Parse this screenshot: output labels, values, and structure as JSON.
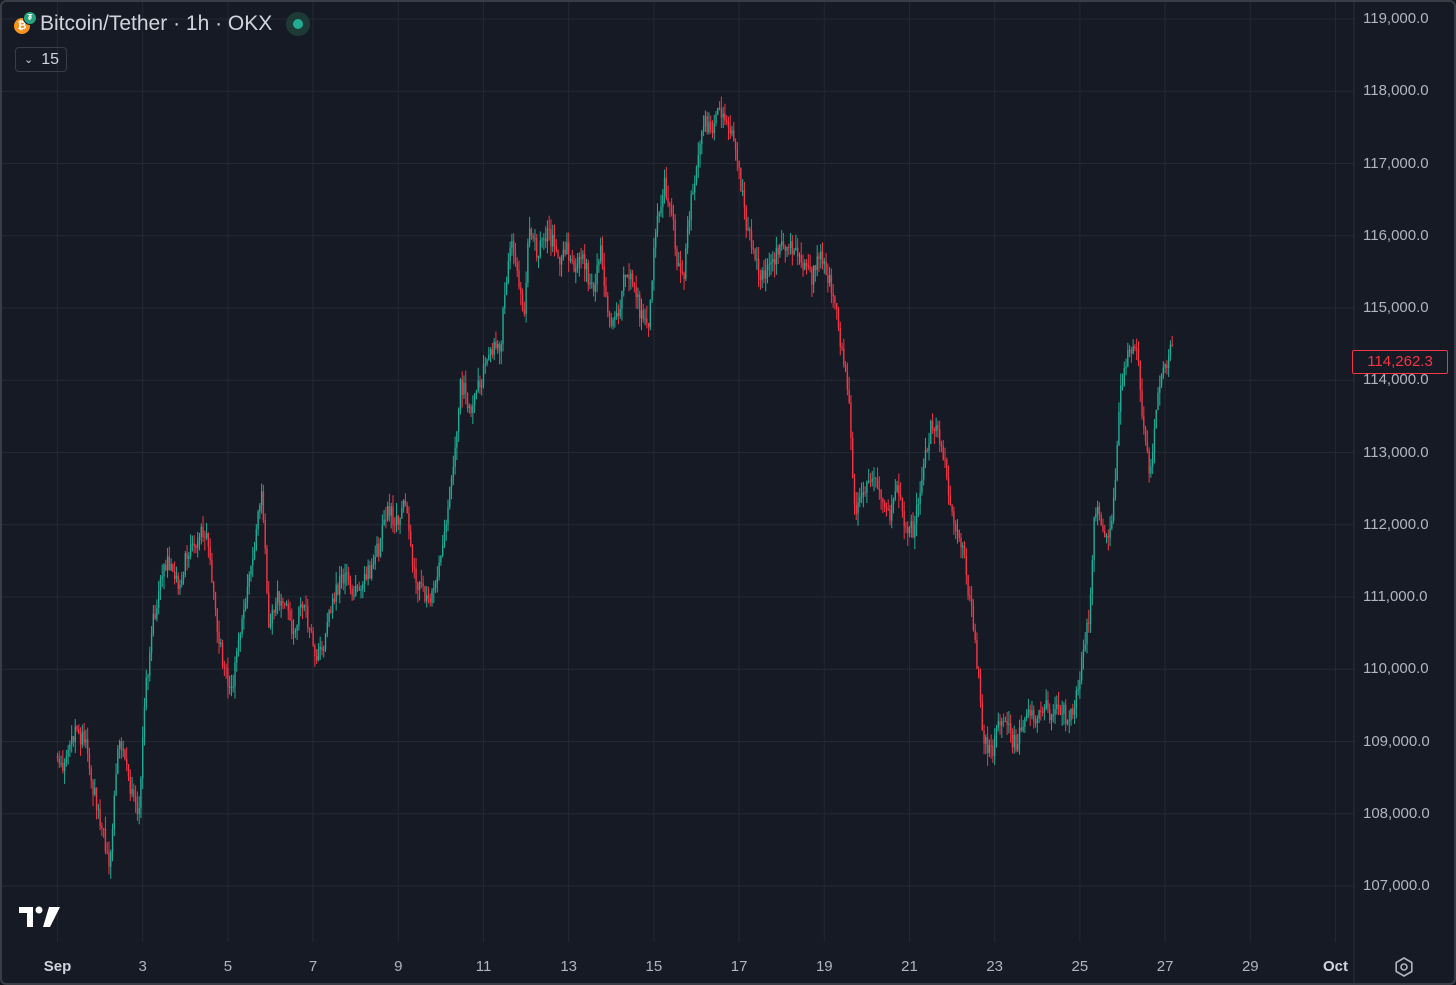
{
  "header": {
    "title": "Bitcoin/Tether · 1h · OKX",
    "status_color": "#22ab94",
    "base_icon": "bitcoin-icon",
    "quote_icon": "tether-icon"
  },
  "indicator_toggle": {
    "label": "15"
  },
  "last_price": {
    "label": "114,262.3",
    "color": "#f23645"
  },
  "colors": {
    "up": "#22ab94",
    "down": "#f23645",
    "background": "#161a25",
    "grid": "#242833"
  },
  "chart_data": {
    "type": "candlestick",
    "title": "Bitcoin/Tether · 1h · OKX",
    "ylim": [
      106000,
      119200
    ],
    "y_ticks": [
      {
        "value": 119000,
        "label": "119,000.0"
      },
      {
        "value": 118000,
        "label": "118,000.0"
      },
      {
        "value": 117000,
        "label": "117,000.0"
      },
      {
        "value": 116000,
        "label": "116,000.0"
      },
      {
        "value": 115000,
        "label": "115,000.0"
      },
      {
        "value": 114000,
        "label": "114,000.0"
      },
      {
        "value": 113000,
        "label": "113,000.0"
      },
      {
        "value": 112000,
        "label": "112,000.0"
      },
      {
        "value": 111000,
        "label": "111,000.0"
      },
      {
        "value": 110000,
        "label": "110,000.0"
      },
      {
        "value": 109000,
        "label": "109,000.0"
      },
      {
        "value": 108000,
        "label": "108,000.0"
      },
      {
        "value": 107000,
        "label": "107,000.0"
      }
    ],
    "x_ticks": [
      {
        "label": "Sep",
        "day": 1,
        "bold": true
      },
      {
        "label": "3",
        "day": 3
      },
      {
        "label": "5",
        "day": 5
      },
      {
        "label": "7",
        "day": 7
      },
      {
        "label": "9",
        "day": 9
      },
      {
        "label": "11",
        "day": 11
      },
      {
        "label": "13",
        "day": 13
      },
      {
        "label": "15",
        "day": 15
      },
      {
        "label": "17",
        "day": 17
      },
      {
        "label": "19",
        "day": 19
      },
      {
        "label": "21",
        "day": 21
      },
      {
        "label": "23",
        "day": 23
      },
      {
        "label": "25",
        "day": 25
      },
      {
        "label": "27",
        "day": 27
      },
      {
        "label": "29",
        "day": 29
      },
      {
        "label": "Oct",
        "day": 31,
        "bold": true
      }
    ],
    "price_path": [
      [
        0.0,
        108800
      ],
      [
        0.2,
        108600
      ],
      [
        0.4,
        109100
      ],
      [
        0.7,
        109000
      ],
      [
        0.9,
        108300
      ],
      [
        1.1,
        107800
      ],
      [
        1.25,
        107300
      ],
      [
        1.5,
        109100
      ],
      [
        1.8,
        108200
      ],
      [
        1.95,
        107900
      ],
      [
        2.1,
        109700
      ],
      [
        2.3,
        110700
      ],
      [
        2.6,
        111500
      ],
      [
        2.9,
        111200
      ],
      [
        3.1,
        111600
      ],
      [
        3.4,
        111900
      ],
      [
        3.6,
        111800
      ],
      [
        3.75,
        110700
      ],
      [
        4.0,
        109900
      ],
      [
        4.1,
        109600
      ],
      [
        4.35,
        110600
      ],
      [
        4.6,
        111500
      ],
      [
        4.85,
        112500
      ],
      [
        5.0,
        110600
      ],
      [
        5.2,
        111000
      ],
      [
        5.4,
        110900
      ],
      [
        5.6,
        110500
      ],
      [
        5.8,
        111000
      ],
      [
        6.1,
        110200
      ],
      [
        6.3,
        110400
      ],
      [
        6.5,
        111000
      ],
      [
        6.75,
        111300
      ],
      [
        7.1,
        111000
      ],
      [
        7.4,
        111400
      ],
      [
        7.6,
        111700
      ],
      [
        7.8,
        112300
      ],
      [
        8.0,
        112000
      ],
      [
        8.2,
        112400
      ],
      [
        8.4,
        111300
      ],
      [
        8.55,
        111100
      ],
      [
        8.75,
        110900
      ],
      [
        9.0,
        111500
      ],
      [
        9.2,
        112200
      ],
      [
        9.4,
        113100
      ],
      [
        9.5,
        114000
      ],
      [
        9.7,
        113600
      ],
      [
        9.9,
        113900
      ],
      [
        10.1,
        114200
      ],
      [
        10.3,
        114500
      ],
      [
        10.45,
        114500
      ],
      [
        10.55,
        115300
      ],
      [
        10.7,
        115900
      ],
      [
        10.8,
        115500
      ],
      [
        11.0,
        115000
      ],
      [
        11.1,
        116000
      ],
      [
        11.3,
        115800
      ],
      [
        11.5,
        116000
      ],
      [
        11.7,
        115900
      ],
      [
        11.85,
        115700
      ],
      [
        12.0,
        115800
      ],
      [
        12.2,
        115600
      ],
      [
        12.4,
        115700
      ],
      [
        12.6,
        115200
      ],
      [
        12.8,
        115800
      ],
      [
        13.0,
        114800
      ],
      [
        13.2,
        114900
      ],
      [
        13.4,
        115600
      ],
      [
        13.55,
        115300
      ],
      [
        13.7,
        115000
      ],
      [
        13.9,
        114700
      ],
      [
        14.1,
        116300
      ],
      [
        14.3,
        116700
      ],
      [
        14.45,
        116400
      ],
      [
        14.6,
        115600
      ],
      [
        14.75,
        115500
      ],
      [
        14.9,
        116500
      ],
      [
        15.1,
        117100
      ],
      [
        15.25,
        117600
      ],
      [
        15.4,
        117400
      ],
      [
        15.55,
        117700
      ],
      [
        15.7,
        117600
      ],
      [
        15.85,
        117400
      ],
      [
        16.0,
        117000
      ],
      [
        16.2,
        116200
      ],
      [
        16.4,
        115700
      ],
      [
        16.6,
        115400
      ],
      [
        16.8,
        115600
      ],
      [
        17.0,
        115900
      ],
      [
        17.15,
        115800
      ],
      [
        17.35,
        115900
      ],
      [
        17.55,
        115600
      ],
      [
        17.75,
        115400
      ],
      [
        17.95,
        115700
      ],
      [
        18.15,
        115400
      ],
      [
        18.35,
        114900
      ],
      [
        18.45,
        114400
      ],
      [
        18.6,
        113900
      ],
      [
        18.75,
        112200
      ],
      [
        18.95,
        112500
      ],
      [
        19.15,
        112700
      ],
      [
        19.35,
        112400
      ],
      [
        19.55,
        112100
      ],
      [
        19.75,
        112500
      ],
      [
        19.95,
        112000
      ],
      [
        20.15,
        111900
      ],
      [
        20.35,
        112800
      ],
      [
        20.55,
        113400
      ],
      [
        20.75,
        113200
      ],
      [
        20.9,
        112700
      ],
      [
        21.1,
        111900
      ],
      [
        21.3,
        111600
      ],
      [
        21.45,
        111000
      ],
      [
        21.6,
        110300
      ],
      [
        21.75,
        109100
      ],
      [
        21.95,
        108800
      ],
      [
        22.15,
        109300
      ],
      [
        22.35,
        109200
      ],
      [
        22.55,
        108900
      ],
      [
        22.75,
        109400
      ],
      [
        22.95,
        109300
      ],
      [
        23.15,
        109500
      ],
      [
        23.35,
        109400
      ],
      [
        23.55,
        109500
      ],
      [
        23.75,
        109300
      ],
      [
        23.9,
        109400
      ],
      [
        24.1,
        110100
      ],
      [
        24.25,
        110700
      ],
      [
        24.4,
        112300
      ],
      [
        24.55,
        112100
      ],
      [
        24.7,
        111700
      ],
      [
        24.85,
        112400
      ],
      [
        25.0,
        113900
      ],
      [
        25.2,
        114400
      ],
      [
        25.4,
        114300
      ],
      [
        25.55,
        113200
      ],
      [
        25.7,
        112700
      ],
      [
        25.85,
        113600
      ],
      [
        26.0,
        114200
      ],
      [
        26.2,
        114400
      ]
    ]
  }
}
